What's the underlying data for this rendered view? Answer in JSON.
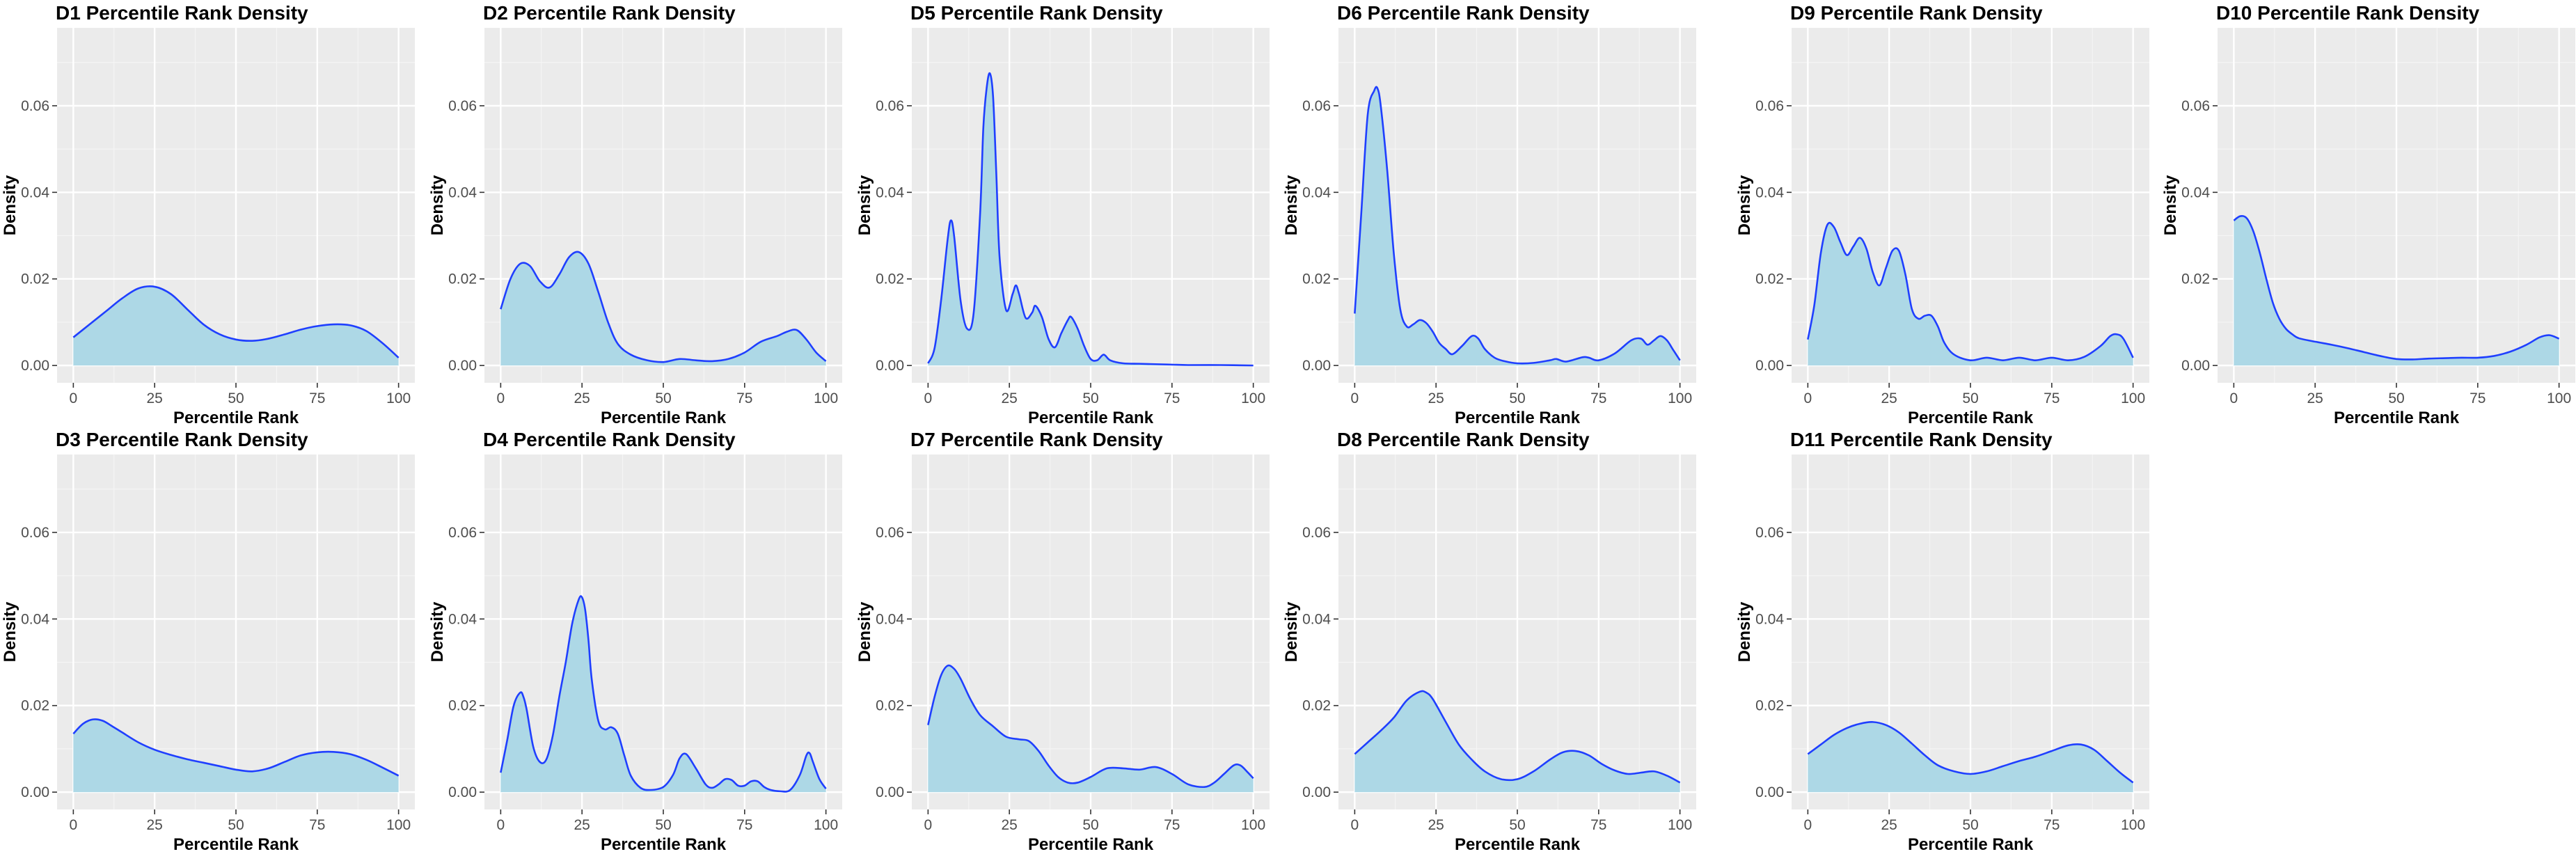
{
  "style": {
    "panel_bg": "#EBEBEB",
    "grid_major": "#FFFFFF",
    "grid_minor": "#F5F5F5",
    "fill_color": "#ADD8E6",
    "line_color": "#1F3FFF",
    "tick_color": "#333333"
  },
  "chart_data": [
    {
      "type": "area",
      "id": "D1",
      "title": "D1 Percentile Rank Density",
      "xlabel": "Percentile Rank",
      "ylabel": "Density",
      "xlim": [
        -5,
        105
      ],
      "ylim": [
        -0.004,
        0.078
      ],
      "xticks": [
        0,
        25,
        50,
        75,
        100
      ],
      "xtick_labels": [
        "0",
        "25",
        "50",
        "75",
        "100"
      ],
      "yticks": [
        0,
        0.02,
        0.04,
        0.06
      ],
      "ytick_labels": [
        "0.00",
        "0.02",
        "0.04",
        "0.06"
      ],
      "x": [
        0,
        5,
        10,
        15,
        20,
        25,
        30,
        35,
        40,
        45,
        50,
        55,
        60,
        65,
        70,
        75,
        80,
        85,
        90,
        95,
        100
      ],
      "y": [
        0.0065,
        0.0095,
        0.0125,
        0.0155,
        0.0178,
        0.0182,
        0.0165,
        0.013,
        0.0095,
        0.0072,
        0.006,
        0.0057,
        0.0062,
        0.0072,
        0.0083,
        0.0091,
        0.0095,
        0.0093,
        0.008,
        0.0052,
        0.0018
      ]
    },
    {
      "type": "area",
      "id": "D2",
      "title": "D2 Percentile Rank Density",
      "xlabel": "Percentile Rank",
      "ylabel": "Density",
      "xlim": [
        -5,
        105
      ],
      "ylim": [
        -0.004,
        0.078
      ],
      "xticks": [
        0,
        25,
        50,
        75,
        100
      ],
      "xtick_labels": [
        "0",
        "25",
        "50",
        "75",
        "100"
      ],
      "yticks": [
        0,
        0.02,
        0.04,
        0.06
      ],
      "ytick_labels": [
        "0.00",
        "0.02",
        "0.04",
        "0.06"
      ],
      "x": [
        0,
        3,
        6,
        9,
        12,
        15,
        18,
        21,
        24,
        27,
        30,
        33,
        36,
        40,
        45,
        50,
        55,
        60,
        65,
        70,
        75,
        80,
        85,
        88,
        91,
        94,
        97,
        100
      ],
      "y": [
        0.013,
        0.02,
        0.0235,
        0.023,
        0.0195,
        0.018,
        0.021,
        0.025,
        0.0262,
        0.0235,
        0.017,
        0.01,
        0.005,
        0.0025,
        0.0012,
        0.0008,
        0.0015,
        0.0012,
        0.001,
        0.0015,
        0.003,
        0.0055,
        0.0068,
        0.0078,
        0.0082,
        0.006,
        0.003,
        0.001
      ]
    },
    {
      "type": "area",
      "id": "D5",
      "title": "D5 Percentile Rank Density",
      "xlabel": "Percentile Rank",
      "ylabel": "Density",
      "xlim": [
        -5,
        105
      ],
      "ylim": [
        -0.004,
        0.078
      ],
      "xticks": [
        0,
        25,
        50,
        75,
        100
      ],
      "xtick_labels": [
        "0",
        "25",
        "50",
        "75",
        "100"
      ],
      "yticks": [
        0,
        0.02,
        0.04,
        0.06
      ],
      "ytick_labels": [
        "0.00",
        "0.02",
        "0.04",
        "0.06"
      ],
      "x": [
        0,
        2,
        4,
        6,
        7,
        8,
        10,
        12,
        14,
        16,
        17,
        18,
        19,
        20,
        21,
        22,
        24,
        26,
        27,
        28,
        30,
        32,
        33,
        35,
        37,
        39,
        41,
        43,
        44,
        46,
        48,
        50,
        52,
        54,
        56,
        60,
        65,
        70,
        75,
        80,
        90,
        100
      ],
      "y": [
        0.0005,
        0.004,
        0.015,
        0.029,
        0.0335,
        0.03,
        0.015,
        0.0085,
        0.012,
        0.035,
        0.055,
        0.064,
        0.0675,
        0.062,
        0.044,
        0.025,
        0.0128,
        0.0165,
        0.0185,
        0.0165,
        0.011,
        0.0122,
        0.0138,
        0.0112,
        0.0062,
        0.0042,
        0.0075,
        0.0105,
        0.0112,
        0.0085,
        0.0045,
        0.0015,
        0.0012,
        0.0025,
        0.0012,
        0.0005,
        0.0004,
        0.0003,
        0.0002,
        0.0001,
        0.0001,
        0
      ]
    },
    {
      "type": "area",
      "id": "D6",
      "title": "D6 Percentile Rank Density",
      "xlabel": "Percentile Rank",
      "ylabel": "Density",
      "xlim": [
        -5,
        105
      ],
      "ylim": [
        -0.004,
        0.078
      ],
      "xticks": [
        0,
        25,
        50,
        75,
        100
      ],
      "xtick_labels": [
        "0",
        "25",
        "50",
        "75",
        "100"
      ],
      "yticks": [
        0,
        0.02,
        0.04,
        0.06
      ],
      "ytick_labels": [
        "0.00",
        "0.02",
        "0.04",
        "0.06"
      ],
      "x": [
        0,
        2,
        4,
        6,
        7,
        8,
        10,
        12,
        14,
        16,
        18,
        20,
        22,
        24,
        26,
        28,
        30,
        33,
        36,
        38,
        40,
        43,
        46,
        50,
        55,
        60,
        62,
        65,
        70,
        72,
        75,
        80,
        85,
        88,
        90,
        92,
        94,
        96,
        98,
        100
      ],
      "y": [
        0.012,
        0.035,
        0.058,
        0.0635,
        0.064,
        0.06,
        0.045,
        0.026,
        0.013,
        0.009,
        0.0095,
        0.0105,
        0.0098,
        0.0078,
        0.0052,
        0.0038,
        0.0026,
        0.0045,
        0.0068,
        0.0062,
        0.0038,
        0.0018,
        0.001,
        0.0005,
        0.0006,
        0.0012,
        0.0015,
        0.0009,
        0.0019,
        0.0018,
        0.0012,
        0.0028,
        0.0058,
        0.0062,
        0.0048,
        0.0058,
        0.0068,
        0.0058,
        0.0035,
        0.0012
      ]
    },
    {
      "type": "area",
      "id": "D9",
      "title": "D9 Percentile Rank Density",
      "xlabel": "Percentile Rank",
      "ylabel": "Density",
      "xlim": [
        -5,
        105
      ],
      "ylim": [
        -0.004,
        0.078
      ],
      "xticks": [
        0,
        25,
        50,
        75,
        100
      ],
      "xtick_labels": [
        "0",
        "25",
        "50",
        "75",
        "100"
      ],
      "yticks": [
        0,
        0.02,
        0.04,
        0.06
      ],
      "ytick_labels": [
        "0.00",
        "0.02",
        "0.04",
        "0.06"
      ],
      "x": [
        0,
        2,
        4,
        6,
        8,
        10,
        12,
        14,
        16,
        18,
        20,
        22,
        24,
        26,
        28,
        30,
        32,
        34,
        36,
        38,
        40,
        42,
        45,
        50,
        55,
        60,
        65,
        70,
        75,
        80,
        85,
        90,
        93,
        95,
        97,
        100
      ],
      "y": [
        0.006,
        0.014,
        0.026,
        0.0325,
        0.032,
        0.0285,
        0.0255,
        0.0275,
        0.0295,
        0.027,
        0.0215,
        0.0185,
        0.0225,
        0.0265,
        0.0265,
        0.021,
        0.013,
        0.0108,
        0.0115,
        0.0115,
        0.009,
        0.0052,
        0.0025,
        0.0012,
        0.0018,
        0.0012,
        0.0018,
        0.0012,
        0.0018,
        0.0012,
        0.002,
        0.0045,
        0.0068,
        0.0072,
        0.0062,
        0.0018
      ]
    },
    {
      "type": "area",
      "id": "D10",
      "title": "D10 Percentile Rank Density",
      "xlabel": "Percentile Rank",
      "ylabel": "Density",
      "xlim": [
        -5,
        105
      ],
      "ylim": [
        -0.004,
        0.078
      ],
      "xticks": [
        0,
        25,
        50,
        75,
        100
      ],
      "xtick_labels": [
        "0",
        "25",
        "50",
        "75",
        "100"
      ],
      "yticks": [
        0,
        0.02,
        0.04,
        0.06
      ],
      "ytick_labels": [
        "0.00",
        "0.02",
        "0.04",
        "0.06"
      ],
      "x": [
        0,
        2,
        4,
        6,
        8,
        10,
        12,
        14,
        16,
        18,
        20,
        25,
        30,
        35,
        40,
        45,
        50,
        55,
        60,
        65,
        70,
        75,
        80,
        85,
        90,
        94,
        97,
        100
      ],
      "y": [
        0.0335,
        0.0345,
        0.034,
        0.031,
        0.026,
        0.02,
        0.0145,
        0.0108,
        0.0085,
        0.0072,
        0.0063,
        0.0055,
        0.0048,
        0.004,
        0.0031,
        0.0022,
        0.0015,
        0.0014,
        0.0016,
        0.0017,
        0.0018,
        0.0018,
        0.0022,
        0.0032,
        0.0048,
        0.0065,
        0.007,
        0.0062
      ]
    },
    {
      "type": "area",
      "id": "D3",
      "title": "D3 Percentile Rank Density",
      "xlabel": "Percentile Rank",
      "ylabel": "Density",
      "xlim": [
        -5,
        105
      ],
      "ylim": [
        -0.004,
        0.078
      ],
      "xticks": [
        0,
        25,
        50,
        75,
        100
      ],
      "xtick_labels": [
        "0",
        "25",
        "50",
        "75",
        "100"
      ],
      "yticks": [
        0,
        0.02,
        0.04,
        0.06
      ],
      "ytick_labels": [
        "0.00",
        "0.02",
        "0.04",
        "0.06"
      ],
      "x": [
        0,
        3,
        6,
        9,
        12,
        15,
        20,
        25,
        30,
        35,
        40,
        45,
        50,
        55,
        60,
        65,
        70,
        75,
        80,
        85,
        90,
        95,
        100
      ],
      "y": [
        0.0135,
        0.0158,
        0.0168,
        0.0165,
        0.0152,
        0.0138,
        0.0115,
        0.0098,
        0.0086,
        0.0076,
        0.0068,
        0.006,
        0.0052,
        0.0048,
        0.0055,
        0.007,
        0.0085,
        0.0092,
        0.0093,
        0.0088,
        0.0075,
        0.0057,
        0.0038
      ]
    },
    {
      "type": "area",
      "id": "D4",
      "title": "D4 Percentile Rank Density",
      "xlabel": "Percentile Rank",
      "ylabel": "Density",
      "xlim": [
        -5,
        105
      ],
      "ylim": [
        -0.004,
        0.078
      ],
      "xticks": [
        0,
        25,
        50,
        75,
        100
      ],
      "xtick_labels": [
        "0",
        "25",
        "50",
        "75",
        "100"
      ],
      "yticks": [
        0,
        0.02,
        0.04,
        0.06
      ],
      "ytick_labels": [
        "0.00",
        "0.02",
        "0.04",
        "0.06"
      ],
      "x": [
        0,
        2,
        4,
        6,
        7,
        8,
        10,
        12,
        14,
        16,
        18,
        20,
        22,
        24,
        25,
        26,
        27,
        28,
        30,
        32,
        34,
        36,
        38,
        40,
        43,
        46,
        50,
        53,
        55,
        57,
        60,
        63,
        65,
        67,
        69,
        71,
        73,
        75,
        77,
        79,
        81,
        83,
        86,
        89,
        92,
        94,
        95,
        96,
        98,
        100
      ],
      "y": [
        0.0045,
        0.012,
        0.02,
        0.023,
        0.022,
        0.019,
        0.0105,
        0.007,
        0.0075,
        0.013,
        0.022,
        0.03,
        0.039,
        0.0445,
        0.045,
        0.042,
        0.035,
        0.026,
        0.0165,
        0.0145,
        0.015,
        0.0135,
        0.0085,
        0.0038,
        0.001,
        0.0005,
        0.0012,
        0.004,
        0.0078,
        0.0088,
        0.0055,
        0.0018,
        0.001,
        0.0018,
        0.003,
        0.0028,
        0.0015,
        0.0015,
        0.0025,
        0.0025,
        0.0012,
        0.0005,
        0.0002,
        0.0005,
        0.004,
        0.0085,
        0.009,
        0.007,
        0.003,
        0.0008
      ]
    },
    {
      "type": "area",
      "id": "D7",
      "title": "D7 Percentile Rank Density",
      "xlabel": "Percentile Rank",
      "ylabel": "Density",
      "xlim": [
        -5,
        105
      ],
      "ylim": [
        -0.004,
        0.078
      ],
      "xticks": [
        0,
        25,
        50,
        75,
        100
      ],
      "xtick_labels": [
        "0",
        "25",
        "50",
        "75",
        "100"
      ],
      "yticks": [
        0,
        0.02,
        0.04,
        0.06
      ],
      "ytick_labels": [
        "0.00",
        "0.02",
        "0.04",
        "0.06"
      ],
      "x": [
        0,
        2,
        4,
        6,
        8,
        10,
        13,
        16,
        20,
        24,
        28,
        31,
        34,
        37,
        40,
        43,
        46,
        50,
        55,
        60,
        65,
        70,
        75,
        80,
        85,
        88,
        91,
        94,
        96,
        98,
        100
      ],
      "y": [
        0.0155,
        0.022,
        0.027,
        0.0292,
        0.0285,
        0.0262,
        0.0215,
        0.0178,
        0.0152,
        0.0128,
        0.0122,
        0.0118,
        0.0095,
        0.0062,
        0.0035,
        0.0022,
        0.0022,
        0.0035,
        0.0055,
        0.0055,
        0.0052,
        0.0058,
        0.0042,
        0.0018,
        0.0012,
        0.0022,
        0.0042,
        0.0062,
        0.0062,
        0.0048,
        0.0032
      ]
    },
    {
      "type": "area",
      "id": "D8",
      "title": "D8 Percentile Rank Density",
      "xlabel": "Percentile Rank",
      "ylabel": "Density",
      "xlim": [
        -5,
        105
      ],
      "ylim": [
        -0.004,
        0.078
      ],
      "xticks": [
        0,
        25,
        50,
        75,
        100
      ],
      "xtick_labels": [
        "0",
        "25",
        "50",
        "75",
        "100"
      ],
      "yticks": [
        0,
        0.02,
        0.04,
        0.06
      ],
      "ytick_labels": [
        "0.00",
        "0.02",
        "0.04",
        "0.06"
      ],
      "x": [
        0,
        4,
        8,
        12,
        16,
        20,
        22,
        24,
        28,
        32,
        36,
        40,
        45,
        50,
        55,
        60,
        64,
        68,
        72,
        76,
        80,
        84,
        88,
        92,
        96,
        100
      ],
      "y": [
        0.0088,
        0.0115,
        0.0142,
        0.0172,
        0.0212,
        0.0232,
        0.023,
        0.0215,
        0.0162,
        0.011,
        0.0075,
        0.0048,
        0.003,
        0.003,
        0.0048,
        0.0075,
        0.0092,
        0.0095,
        0.0085,
        0.0065,
        0.005,
        0.0042,
        0.0045,
        0.0048,
        0.0038,
        0.0022
      ]
    },
    {
      "type": "area",
      "id": "D11",
      "title": "D11 Percentile Rank Density",
      "xlabel": "Percentile Rank",
      "ylabel": "Density",
      "xlim": [
        -5,
        105
      ],
      "ylim": [
        -0.004,
        0.078
      ],
      "xticks": [
        0,
        25,
        50,
        75,
        100
      ],
      "xtick_labels": [
        "0",
        "25",
        "50",
        "75",
        "100"
      ],
      "yticks": [
        0,
        0.02,
        0.04,
        0.06
      ],
      "ytick_labels": [
        "0.00",
        "0.02",
        "0.04",
        "0.06"
      ],
      "x": [
        0,
        4,
        8,
        12,
        16,
        20,
        24,
        28,
        32,
        36,
        40,
        45,
        50,
        55,
        60,
        65,
        70,
        75,
        80,
        84,
        88,
        92,
        96,
        100
      ],
      "y": [
        0.0088,
        0.011,
        0.0132,
        0.0148,
        0.0158,
        0.0162,
        0.0155,
        0.0138,
        0.0112,
        0.0085,
        0.0062,
        0.0048,
        0.0042,
        0.0048,
        0.006,
        0.0072,
        0.0082,
        0.0095,
        0.0108,
        0.011,
        0.0098,
        0.0072,
        0.0045,
        0.0022
      ]
    }
  ]
}
